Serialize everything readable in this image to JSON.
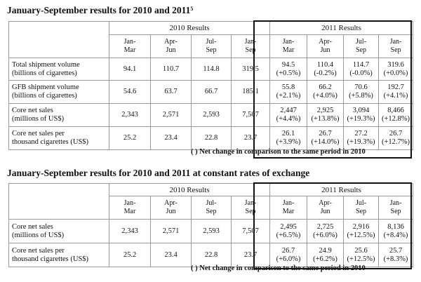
{
  "table1": {
    "title": "January-September results for 2010 and 2011",
    "title_sup": "5",
    "group_2010": "2010 Results",
    "group_2011": "2011 Results",
    "periods": [
      [
        "Jan-",
        "Mar"
      ],
      [
        "Apr-",
        "Jun"
      ],
      [
        "Jul-",
        "Sep"
      ],
      [
        "Jan-",
        "Sep"
      ]
    ],
    "rows": [
      {
        "label": [
          "Total shipment volume",
          "(billions of cigarettes)"
        ],
        "v2010": [
          "94.1",
          "110.7",
          "114.8",
          "319.5"
        ],
        "v2011": [
          [
            "94.5",
            "(+0.5%)"
          ],
          [
            "110.4",
            "(-0.2%)"
          ],
          [
            "114.7",
            "(-0.0%)"
          ],
          [
            "319.6",
            "(+0.0%)"
          ]
        ]
      },
      {
        "label": [
          "GFB shipment volume",
          "(billions of cigarettes)"
        ],
        "v2010": [
          "54.6",
          "63.7",
          "66.7",
          "185.1"
        ],
        "v2011": [
          [
            "55.8",
            "(+2.1%)"
          ],
          [
            "66.2",
            "(+4.0%)"
          ],
          [
            "70.6",
            "(+5.8%)"
          ],
          [
            "192.7",
            "(+4.1%)"
          ]
        ]
      },
      {
        "label": [
          "Core net sales",
          "(millions of US$)"
        ],
        "v2010": [
          "2,343",
          "2,571",
          "2,593",
          "7,507"
        ],
        "v2011": [
          [
            "2,447",
            "(+4.4%)"
          ],
          [
            "2,925",
            "(+13.8%)"
          ],
          [
            "3,094",
            "(+19.3%)"
          ],
          [
            "8,466",
            "(+12.8%)"
          ]
        ]
      },
      {
        "label": [
          "Core net sales per",
          "thousand cigarettes (US$)"
        ],
        "v2010": [
          "25.2",
          "23.4",
          "22.8",
          "23.7"
        ],
        "v2011": [
          [
            "26.1",
            "(+3.9%)"
          ],
          [
            "26.7",
            "(+14.0%)"
          ],
          [
            "27.2",
            "(+19.3%)"
          ],
          [
            "26.7",
            "(+12.7%)"
          ]
        ]
      }
    ],
    "note": "(   ) Net change in comparison to the same period in 2010"
  },
  "table2": {
    "title": "January-September results for 2010 and 2011 at constant rates of exchange",
    "group_2010": "2010 Results",
    "group_2011": "2011 Results",
    "periods": [
      [
        "Jan-",
        "Mar"
      ],
      [
        "Apr-",
        "Jun"
      ],
      [
        "Jul-",
        "Sep"
      ],
      [
        "Jan-",
        "Sep"
      ]
    ],
    "rows": [
      {
        "label": [
          "Core net sales",
          "(millions of US$)"
        ],
        "v2010": [
          "2,343",
          "2,571",
          "2,593",
          "7,507"
        ],
        "v2011": [
          [
            "2,495",
            "(+6.5%)"
          ],
          [
            "2,725",
            "(+6.0%)"
          ],
          [
            "2,916",
            "(+12.5%)"
          ],
          [
            "8,136",
            "(+8.4%)"
          ]
        ]
      },
      {
        "label": [
          "Core net sales per",
          "thousand cigarettes (US$)"
        ],
        "v2010": [
          "25.2",
          "23.4",
          "22.8",
          "23.7"
        ],
        "v2011": [
          [
            "26.7",
            "(+6.0%)"
          ],
          [
            "24.9",
            "(+6.2%)"
          ],
          [
            "25.6",
            "(+12.5%)"
          ],
          [
            "25.7",
            "(+8.3%)"
          ]
        ]
      }
    ],
    "note": "(   ) Net change in comparison to the same period in 2010"
  }
}
